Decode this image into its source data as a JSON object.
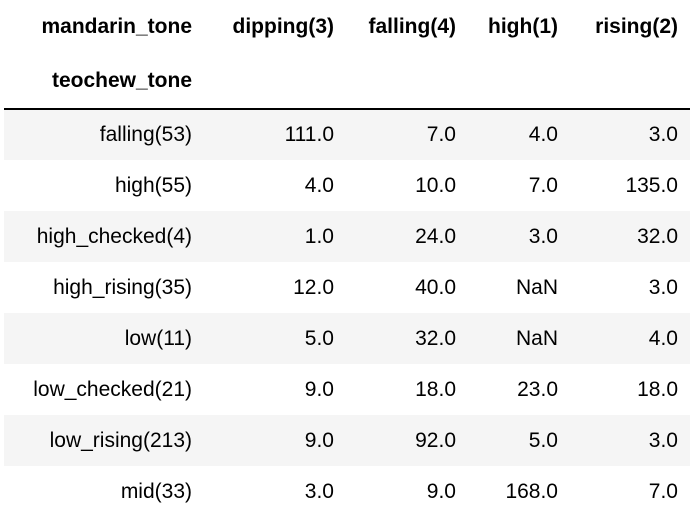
{
  "table": {
    "columns_name": "mandarin_tone",
    "index_name": "teochew_tone",
    "columns": [
      "dipping(3)",
      "falling(4)",
      "high(1)",
      "rising(2)"
    ],
    "rows": [
      {
        "index": "falling(53)",
        "cells": [
          "111.0",
          "7.0",
          "4.0",
          "3.0"
        ]
      },
      {
        "index": "high(55)",
        "cells": [
          "4.0",
          "10.0",
          "7.0",
          "135.0"
        ]
      },
      {
        "index": "high_checked(4)",
        "cells": [
          "1.0",
          "24.0",
          "3.0",
          "32.0"
        ]
      },
      {
        "index": "high_rising(35)",
        "cells": [
          "12.0",
          "40.0",
          "NaN",
          "3.0"
        ]
      },
      {
        "index": "low(11)",
        "cells": [
          "5.0",
          "32.0",
          "NaN",
          "4.0"
        ]
      },
      {
        "index": "low_checked(21)",
        "cells": [
          "9.0",
          "18.0",
          "23.0",
          "18.0"
        ]
      },
      {
        "index": "low_rising(213)",
        "cells": [
          "9.0",
          "92.0",
          "5.0",
          "3.0"
        ]
      },
      {
        "index": "mid(33)",
        "cells": [
          "3.0",
          "9.0",
          "168.0",
          "7.0"
        ]
      }
    ]
  }
}
